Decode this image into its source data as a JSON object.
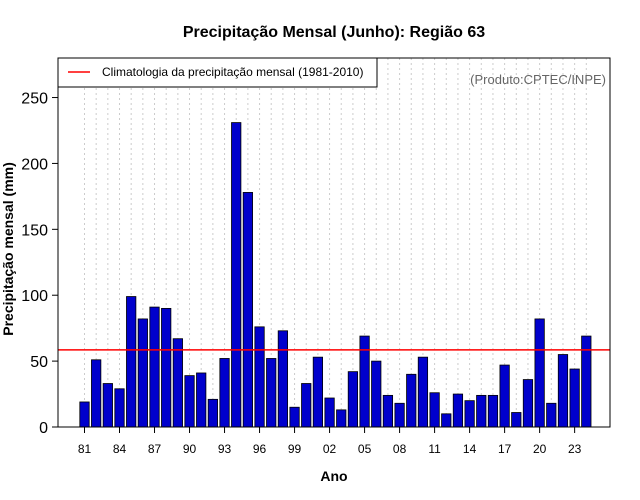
{
  "chart_data": {
    "type": "bar",
    "title": "Precipitação Mensal (Junho): Região 63",
    "xlabel": "Ano",
    "ylabel": "Precipitação mensal (mm)",
    "ylim": [
      0,
      280
    ],
    "yticks": [
      0,
      50,
      100,
      150,
      200,
      250
    ],
    "grid": "vertical-dotted",
    "categories": [
      "1981",
      "1982",
      "1983",
      "1984",
      "1985",
      "1986",
      "1987",
      "1988",
      "1989",
      "1990",
      "1991",
      "1992",
      "1993",
      "1994",
      "1995",
      "1996",
      "1997",
      "1998",
      "1999",
      "2000",
      "2001",
      "2002",
      "2003",
      "2004",
      "2005",
      "2006",
      "2007",
      "2008",
      "2009",
      "2010",
      "2011",
      "2012",
      "2013",
      "2014",
      "2015",
      "2016",
      "2017",
      "2018",
      "2019",
      "2020",
      "2021",
      "2022",
      "2023",
      "2024"
    ],
    "tick_labels": [
      "81",
      "",
      "",
      "84",
      "",
      "",
      "87",
      "",
      "",
      "90",
      "",
      "",
      "93",
      "",
      "",
      "96",
      "",
      "",
      "99",
      "",
      "",
      "02",
      "",
      "",
      "05",
      "",
      "",
      "08",
      "",
      "",
      "11",
      "",
      "",
      "14",
      "",
      "",
      "17",
      "",
      "",
      "20",
      "",
      "",
      "23",
      ""
    ],
    "values": [
      19,
      51,
      33,
      29,
      99,
      82,
      91,
      90,
      67,
      39,
      41,
      21,
      52,
      231,
      178,
      76,
      52,
      73,
      15,
      33,
      53,
      22,
      13,
      42,
      69,
      50,
      24,
      18,
      40,
      53,
      26,
      10,
      25,
      20,
      24,
      24,
      47,
      11,
      36,
      82,
      18,
      55,
      44,
      69
    ],
    "bar_color": "#0000cc",
    "reference_line": {
      "label": "Climatologia da precipitação mensal (1981-2010)",
      "value": 58.5,
      "color": "#ff0000"
    },
    "legend_position": "top-left",
    "annotation": "(Produto:CPTEC/INPE)"
  }
}
